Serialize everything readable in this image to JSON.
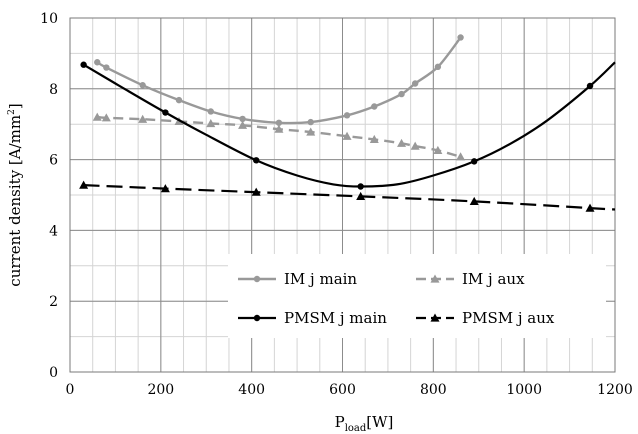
{
  "chart_data": {
    "type": "line",
    "xlabel": {
      "main": "P",
      "sub": "load",
      "rest": "[W]"
    },
    "ylabel": {
      "main": "current density [A/mm",
      "sup": "2",
      "rest": "]"
    },
    "xlim": [
      0,
      1200
    ],
    "ylim": [
      0,
      10
    ],
    "x_ticks": [
      "0",
      "200",
      "400",
      "600",
      "800",
      "1000",
      "1200"
    ],
    "y_ticks": [
      "0",
      "2",
      "4",
      "6",
      "8",
      "10"
    ],
    "grid": true,
    "legend_position": "bottom-right",
    "series": [
      {
        "name": "IM j main",
        "color": "#999999",
        "dash": "solid",
        "marker": "circle",
        "points": [
          [
            60,
            8.75
          ],
          [
            80,
            8.6
          ],
          [
            160,
            8.1
          ],
          [
            240,
            7.68
          ],
          [
            310,
            7.36
          ],
          [
            380,
            7.15
          ],
          [
            460,
            7.04
          ],
          [
            530,
            7.06
          ],
          [
            610,
            7.25
          ],
          [
            670,
            7.5
          ],
          [
            730,
            7.85
          ],
          [
            760,
            8.15
          ],
          [
            810,
            8.62
          ],
          [
            860,
            9.45
          ]
        ]
      },
      {
        "name": "IM j aux",
        "color": "#999999",
        "dash": "dashed",
        "marker": "triangle",
        "points": [
          [
            60,
            7.2
          ],
          [
            80,
            7.18
          ],
          [
            160,
            7.14
          ],
          [
            240,
            7.08
          ],
          [
            310,
            7.02
          ],
          [
            380,
            6.97
          ],
          [
            460,
            6.86
          ],
          [
            530,
            6.78
          ],
          [
            610,
            6.66
          ],
          [
            670,
            6.57
          ],
          [
            730,
            6.46
          ],
          [
            760,
            6.38
          ],
          [
            810,
            6.26
          ],
          [
            860,
            6.08
          ]
        ]
      },
      {
        "name": "PMSM j main",
        "color": "#000000",
        "dash": "solid",
        "marker": "circle",
        "points": [
          [
            30,
            8.68
          ],
          [
            210,
            7.33
          ],
          [
            410,
            5.98
          ],
          [
            640,
            5.24
          ],
          [
            890,
            5.95
          ],
          [
            1145,
            8.08
          ]
        ],
        "curve": [
          [
            30,
            8.68
          ],
          [
            100,
            8.15
          ],
          [
            210,
            7.33
          ],
          [
            300,
            6.7
          ],
          [
            410,
            5.98
          ],
          [
            500,
            5.55
          ],
          [
            580,
            5.3
          ],
          [
            640,
            5.24
          ],
          [
            720,
            5.3
          ],
          [
            800,
            5.55
          ],
          [
            890,
            5.95
          ],
          [
            970,
            6.45
          ],
          [
            1050,
            7.1
          ],
          [
            1145,
            8.08
          ],
          [
            1200,
            8.75
          ]
        ]
      },
      {
        "name": "PMSM j aux",
        "color": "#000000",
        "dash": "dashed",
        "marker": "triangle",
        "points": [
          [
            30,
            5.28
          ],
          [
            210,
            5.18
          ],
          [
            410,
            5.08
          ],
          [
            640,
            4.96
          ],
          [
            890,
            4.82
          ],
          [
            1145,
            4.63
          ]
        ],
        "curve": [
          [
            30,
            5.28
          ],
          [
            210,
            5.18
          ],
          [
            410,
            5.08
          ],
          [
            640,
            4.96
          ],
          [
            890,
            4.82
          ],
          [
            1145,
            4.63
          ],
          [
            1200,
            4.59
          ]
        ]
      }
    ]
  }
}
